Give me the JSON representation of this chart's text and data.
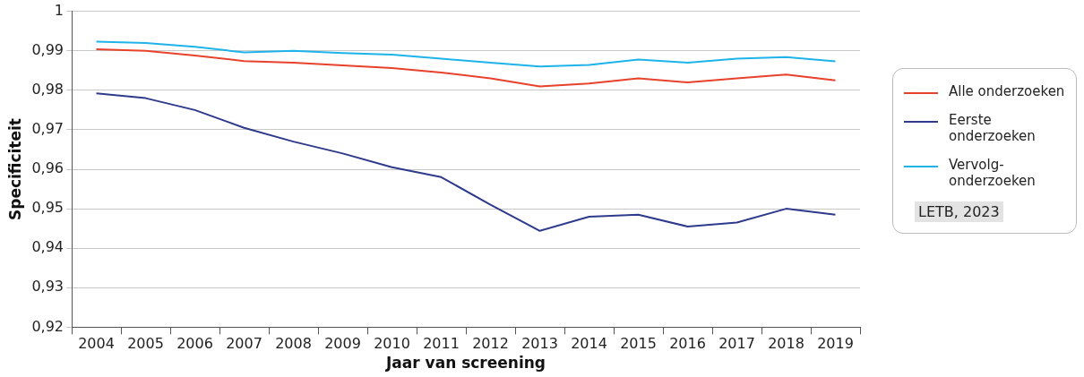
{
  "chart_data": {
    "type": "line",
    "xlabel": "Jaar van screening",
    "ylabel": "Specificiteit",
    "categories": [
      "2004",
      "2005",
      "2006",
      "2007",
      "2008",
      "2009",
      "2010",
      "2011",
      "2012",
      "2013",
      "2014",
      "2015",
      "2016",
      "2017",
      "2018",
      "2019"
    ],
    "series": [
      {
        "name": "Alle onderzoeken",
        "color": "#e8412c",
        "values": [
          0.9904,
          0.99,
          0.9888,
          0.9874,
          0.987,
          0.9863,
          0.9856,
          0.9845,
          0.983,
          0.981,
          0.9817,
          0.983,
          0.982,
          0.983,
          0.984,
          0.9825
        ]
      },
      {
        "name": "Eerste onderzoeken",
        "color": "#2e3a8c",
        "values": [
          0.9792,
          0.978,
          0.975,
          0.9705,
          0.967,
          0.964,
          0.9605,
          0.958,
          0.951,
          0.9444,
          0.948,
          0.9485,
          0.9455,
          0.9465,
          0.95,
          0.9485
        ]
      },
      {
        "name": "Vervolg-onderzoeken",
        "color": "#1eb4ea",
        "values": [
          0.9923,
          0.992,
          0.991,
          0.9896,
          0.99,
          0.9894,
          0.989,
          0.988,
          0.987,
          0.986,
          0.9864,
          0.9878,
          0.987,
          0.988,
          0.9884,
          0.9873
        ]
      }
    ],
    "ylim": [
      0.92,
      1
    ],
    "yticks": [
      {
        "value": 0.92,
        "label": "0,92"
      },
      {
        "value": 0.93,
        "label": "0,93"
      },
      {
        "value": 0.94,
        "label": "0,94"
      },
      {
        "value": 0.95,
        "label": "0,95"
      },
      {
        "value": 0.96,
        "label": "0,96"
      },
      {
        "value": 0.97,
        "label": "0,97"
      },
      {
        "value": 0.98,
        "label": "0,98"
      },
      {
        "value": 0.99,
        "label": "0,99"
      },
      {
        "value": 1,
        "label": "1"
      }
    ],
    "grid": "y",
    "legend": "right",
    "marker": "none",
    "line_style": "solid",
    "annotations": [
      "LETB, 2023"
    ]
  }
}
